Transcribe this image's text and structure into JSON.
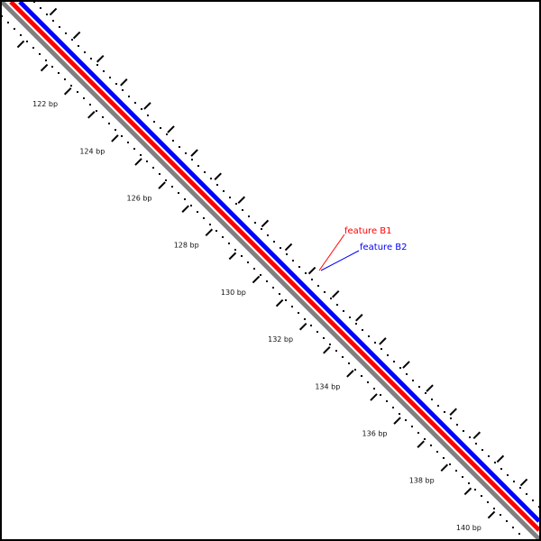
{
  "diagram": {
    "colors": {
      "background": "#ffffff",
      "border": "#000000",
      "backbone": "#808080",
      "feature_b1": "#ff0000",
      "feature_b2": "#0000ff",
      "ticks": "#000000"
    },
    "scale": {
      "unit": "bp",
      "start_bp": 121,
      "end_bp": 141,
      "label_step_bp": 2,
      "labels": [
        "122 bp",
        "124 bp",
        "126 bp",
        "128 bp",
        "130 bp",
        "132 bp",
        "134 bp",
        "136 bp",
        "138 bp",
        "140 bp"
      ]
    },
    "features": [
      {
        "id": "b1",
        "label": "feature B1",
        "color": "#ff0000"
      },
      {
        "id": "b2",
        "label": "feature B2",
        "color": "#0000ff"
      }
    ]
  }
}
